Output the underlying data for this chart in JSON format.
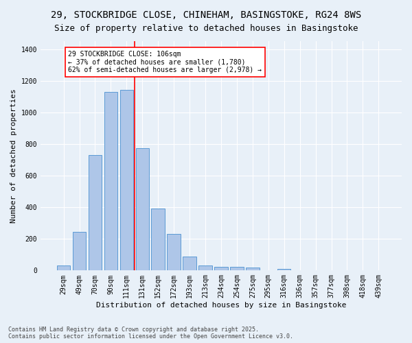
{
  "title1": "29, STOCKBRIDGE CLOSE, CHINEHAM, BASINGSTOKE, RG24 8WS",
  "title2": "Size of property relative to detached houses in Basingstoke",
  "xlabel": "Distribution of detached houses by size in Basingstoke",
  "ylabel": "Number of detached properties",
  "categories": [
    "29sqm",
    "49sqm",
    "70sqm",
    "90sqm",
    "111sqm",
    "131sqm",
    "152sqm",
    "172sqm",
    "193sqm",
    "213sqm",
    "234sqm",
    "254sqm",
    "275sqm",
    "295sqm",
    "316sqm",
    "336sqm",
    "357sqm",
    "377sqm",
    "398sqm",
    "418sqm",
    "439sqm"
  ],
  "values": [
    30,
    245,
    728,
    1130,
    1140,
    775,
    390,
    230,
    90,
    30,
    22,
    22,
    17,
    0,
    8,
    0,
    0,
    0,
    0,
    0,
    0
  ],
  "bar_color": "#aec6e8",
  "bar_edge_color": "#5b9bd5",
  "vline_x": 4.5,
  "vline_color": "red",
  "annotation_text": "29 STOCKBRIDGE CLOSE: 106sqm\n← 37% of detached houses are smaller (1,780)\n62% of semi-detached houses are larger (2,978) →",
  "annotation_box_color": "white",
  "annotation_box_edge": "red",
  "ylim": [
    0,
    1450
  ],
  "yticks": [
    0,
    200,
    400,
    600,
    800,
    1000,
    1200,
    1400
  ],
  "background_color": "#e8f0f8",
  "footer1": "Contains HM Land Registry data © Crown copyright and database right 2025.",
  "footer2": "Contains public sector information licensed under the Open Government Licence v3.0.",
  "title1_fontsize": 10,
  "title2_fontsize": 9,
  "xlabel_fontsize": 8,
  "ylabel_fontsize": 8,
  "tick_fontsize": 7,
  "footer_fontsize": 6,
  "bar_width": 0.85
}
